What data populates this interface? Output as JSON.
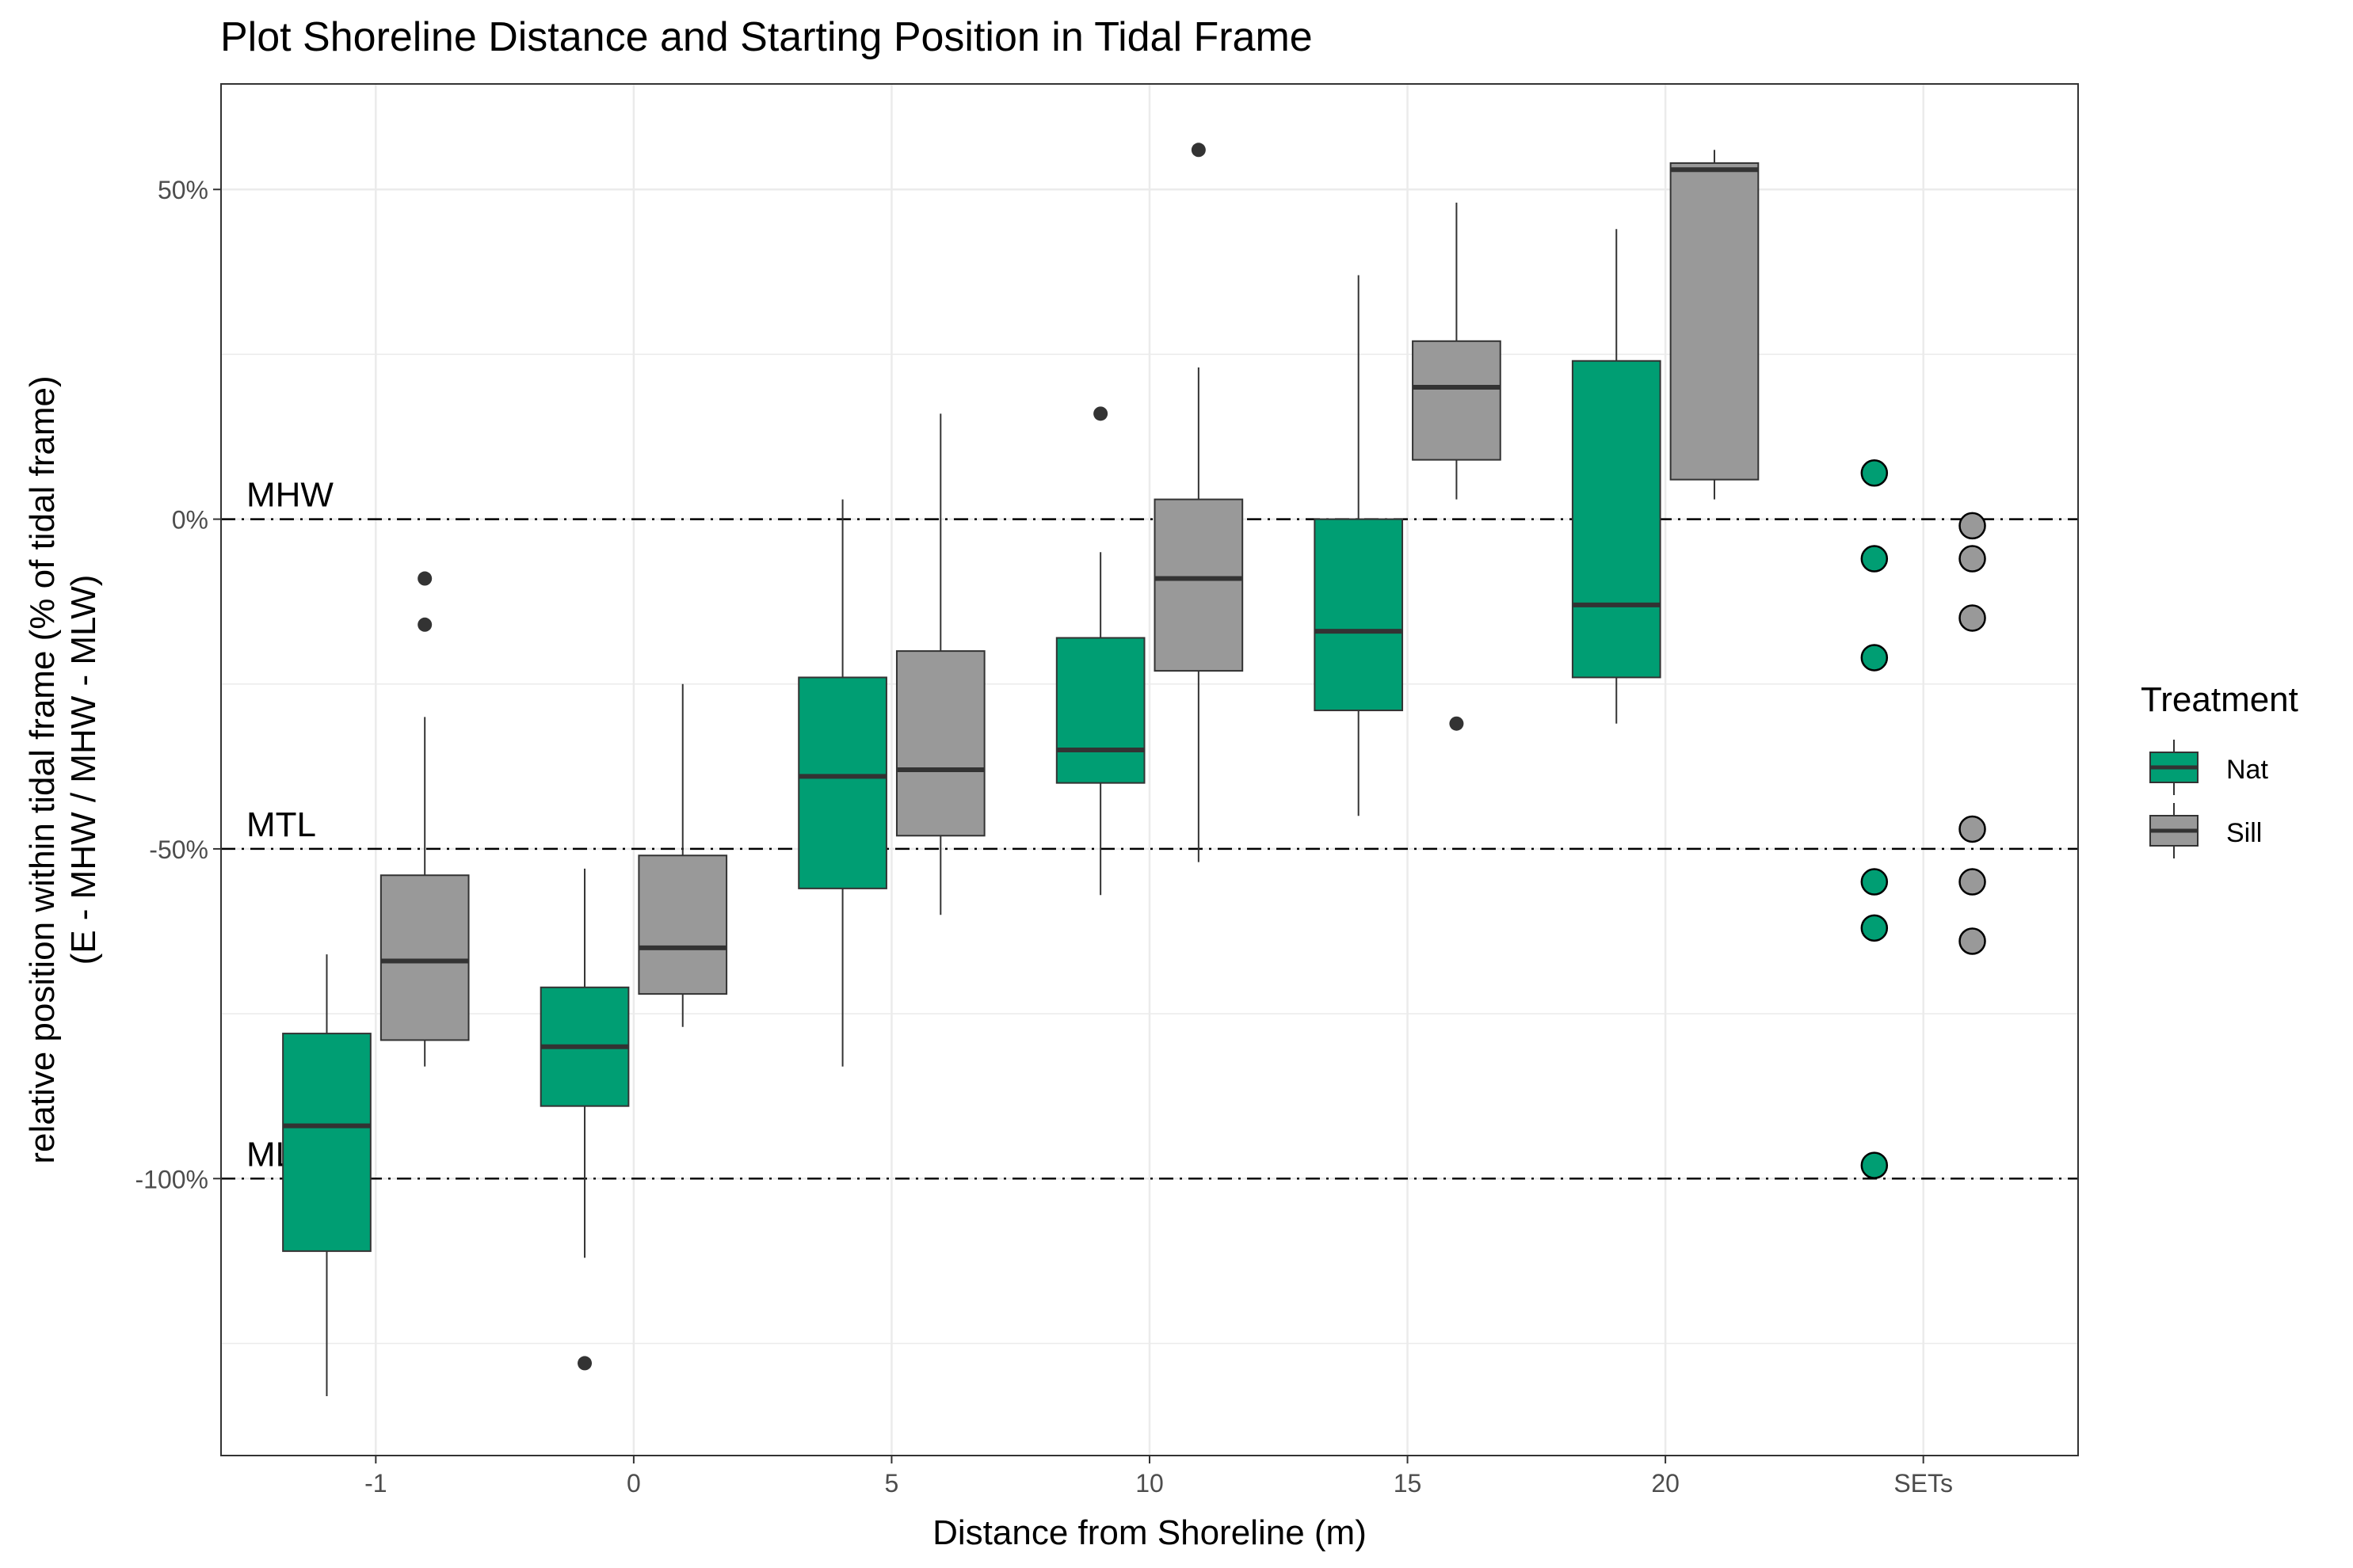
{
  "chart_data": {
    "type": "boxplot",
    "title": "Plot Shoreline Distance and Starting Position in Tidal Frame",
    "xlabel": "Distance from Shoreline (m)",
    "ylabel_lines": [
      "relative position within tidal frame (% of tidal frame)",
      "(E - MHW / MHW - MLW)"
    ],
    "categories": [
      "-1",
      "0",
      "5",
      "10",
      "15",
      "20",
      "SETs"
    ],
    "yticks": [
      {
        "value": 50,
        "label": "50%"
      },
      {
        "value": 0,
        "label": "0%"
      },
      {
        "value": -50,
        "label": "-50%"
      },
      {
        "value": -100,
        "label": "-100%"
      }
    ],
    "ylim": [
      -142,
      66
    ],
    "grid": true,
    "reference_lines": [
      {
        "value": 0,
        "label": "MHW"
      },
      {
        "value": -50,
        "label": "MTL"
      },
      {
        "value": -100,
        "label": "MLW"
      }
    ],
    "legend": {
      "title": "Treatment",
      "position": "right",
      "items": [
        {
          "name": "Nat",
          "color": "#009E73"
        },
        {
          "name": "Sill",
          "color": "#999999"
        }
      ]
    },
    "series": [
      {
        "name": "Nat",
        "color": "#009E73",
        "boxes": [
          {
            "category": "-1",
            "min": -133,
            "q1": -111,
            "median": -92,
            "q3": -78,
            "max": -66,
            "outliers": []
          },
          {
            "category": "0",
            "min": -112,
            "q1": -89,
            "median": -80,
            "q3": -71,
            "max": -53,
            "outliers": [
              -128
            ]
          },
          {
            "category": "5",
            "min": -83,
            "q1": -56,
            "median": -39,
            "q3": -24,
            "max": 3,
            "outliers": []
          },
          {
            "category": "10",
            "min": -57,
            "q1": -40,
            "median": -35,
            "q3": -18,
            "max": -5,
            "outliers": [
              16
            ]
          },
          {
            "category": "15",
            "min": -45,
            "q1": -29,
            "median": -17,
            "q3": 0,
            "max": 37,
            "outliers": []
          },
          {
            "category": "20",
            "min": -31,
            "q1": -24,
            "median": -13,
            "q3": 24,
            "max": 44,
            "outliers": []
          }
        ],
        "points": [
          {
            "category": "SETs",
            "values": [
              7,
              -6,
              -21,
              -55,
              -62,
              -98
            ]
          }
        ]
      },
      {
        "name": "Sill",
        "color": "#999999",
        "boxes": [
          {
            "category": "-1",
            "min": -83,
            "q1": -79,
            "median": -67,
            "q3": -54,
            "max": -30,
            "outliers": [
              -9,
              -16
            ]
          },
          {
            "category": "0",
            "min": -77,
            "q1": -72,
            "median": -65,
            "q3": -51,
            "max": -25,
            "outliers": []
          },
          {
            "category": "5",
            "min": -60,
            "q1": -48,
            "median": -38,
            "q3": -20,
            "max": 16,
            "outliers": []
          },
          {
            "category": "10",
            "min": -52,
            "q1": -23,
            "median": -9,
            "q3": 3,
            "max": 23,
            "outliers": [
              56
            ]
          },
          {
            "category": "15",
            "min": 3,
            "q1": 9,
            "median": 20,
            "q3": 27,
            "max": 48,
            "outliers": [
              -31
            ]
          },
          {
            "category": "20",
            "min": 3,
            "q1": 6,
            "median": 53,
            "q3": 54,
            "max": 56,
            "outliers": []
          }
        ],
        "points": [
          {
            "category": "SETs",
            "values": [
              -1,
              -6,
              -15,
              -47,
              -55,
              -64
            ]
          }
        ]
      }
    ]
  }
}
